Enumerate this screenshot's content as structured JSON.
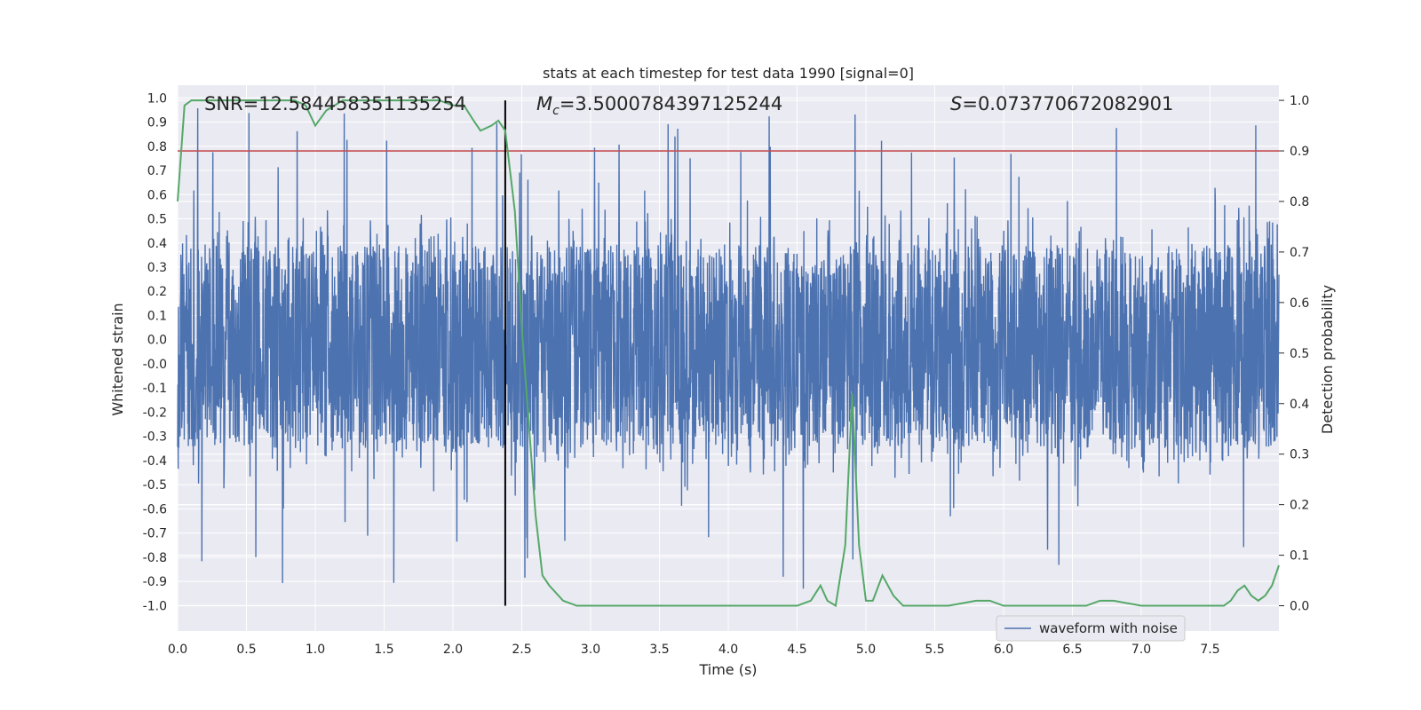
{
  "chart_data": {
    "type": "line",
    "title": "stats at each timestep for test data 1990 [signal=0]",
    "xlabel": "Time (s)",
    "ylabel": "Whitened strain",
    "ylabel_right": "Detection probability",
    "xlim": [
      0.0,
      8.0
    ],
    "ylim": [
      -1.1,
      1.05
    ],
    "ylim_right": [
      -0.05,
      1.03
    ],
    "xticks": [
      "0.0",
      "0.5",
      "1.0",
      "1.5",
      "2.0",
      "2.5",
      "3.0",
      "3.5",
      "4.0",
      "4.5",
      "5.0",
      "5.5",
      "6.0",
      "6.5",
      "7.0",
      "7.5"
    ],
    "yticks": [
      "1.0",
      "0.9",
      "0.8",
      "0.7",
      "0.6",
      "0.5",
      "0.4",
      "0.3",
      "0.2",
      "0.1",
      "0.0",
      "-0.0",
      "-0.1",
      "-0.2",
      "-0.3",
      "-0.4",
      "-0.5",
      "-0.6",
      "-0.7",
      "-0.8",
      "-0.9",
      "-1.0"
    ],
    "yticks_right": [
      "1.0",
      "0.9",
      "0.8",
      "0.7",
      "0.6",
      "0.5",
      "0.4",
      "0.3",
      "0.2",
      "0.1",
      "0.0"
    ],
    "grid": true,
    "annotations": {
      "snr": "SNR=12.584458351135254",
      "mc": "=3.5000784397125244",
      "mc_symbol": "M",
      "mc_sub": "c",
      "s": "=0.073770672082901",
      "s_symbol": "S"
    },
    "threshold": 0.9,
    "vertical_marker_x": 2.38,
    "legend": {
      "label": "waveform with noise",
      "placement": "lower-right"
    },
    "waveform": {
      "name": "waveform with noise",
      "color": "#4c72b0",
      "envelope_min": -0.38,
      "envelope_max": 0.42,
      "spike_max": 0.98,
      "spike_min": -0.98,
      "samples": 4000,
      "seed": 1990
    },
    "series": [
      {
        "name": "Detection probability",
        "color": "#55a868",
        "axis": "right",
        "x": [
          0.0,
          0.05,
          0.1,
          0.2,
          0.3,
          0.5,
          0.7,
          0.85,
          0.93,
          1.0,
          1.08,
          1.2,
          1.4,
          1.6,
          1.8,
          1.9,
          2.0,
          2.08,
          2.15,
          2.2,
          2.28,
          2.33,
          2.38,
          2.45,
          2.5,
          2.6,
          2.65,
          2.7,
          2.8,
          2.9,
          3.0,
          3.2,
          3.4,
          3.6,
          3.8,
          4.0,
          4.2,
          4.5,
          4.6,
          4.67,
          4.72,
          4.78,
          4.85,
          4.9,
          4.95,
          5.0,
          5.05,
          5.12,
          5.2,
          5.27,
          5.35,
          5.6,
          5.8,
          5.9,
          6.0,
          6.3,
          6.6,
          6.7,
          6.8,
          7.0,
          7.2,
          7.4,
          7.5,
          7.6,
          7.65,
          7.7,
          7.75,
          7.8,
          7.85,
          7.9,
          7.95,
          8.0
        ],
        "y": [
          0.8,
          0.99,
          1.0,
          1.0,
          1.0,
          1.0,
          1.0,
          1.0,
          0.99,
          0.95,
          0.98,
          1.0,
          1.0,
          1.0,
          1.0,
          1.0,
          0.99,
          0.99,
          0.96,
          0.94,
          0.95,
          0.96,
          0.94,
          0.78,
          0.55,
          0.18,
          0.06,
          0.04,
          0.01,
          0.0,
          0.0,
          0.0,
          0.0,
          0.0,
          0.0,
          0.0,
          0.0,
          0.0,
          0.01,
          0.04,
          0.01,
          0.0,
          0.12,
          0.42,
          0.12,
          0.01,
          0.01,
          0.06,
          0.02,
          0.0,
          0.0,
          0.0,
          0.01,
          0.01,
          0.0,
          0.0,
          0.0,
          0.01,
          0.01,
          0.0,
          0.0,
          0.0,
          0.0,
          0.0,
          0.01,
          0.03,
          0.04,
          0.02,
          0.01,
          0.02,
          0.04,
          0.08
        ]
      }
    ]
  }
}
